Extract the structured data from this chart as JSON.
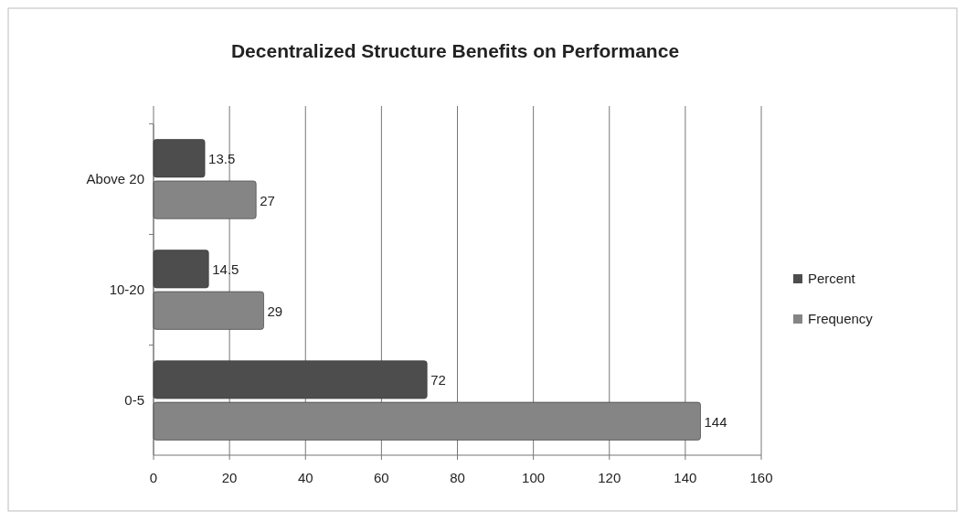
{
  "chart_data": {
    "type": "bar",
    "orientation": "horizontal",
    "title": "Decentralized Structure Benefits on Performance",
    "categories": [
      "Above 20",
      "10-20",
      "0-5"
    ],
    "series": [
      {
        "name": "Percent",
        "color": "#4d4d4d",
        "values": [
          13.5,
          14.5,
          72
        ]
      },
      {
        "name": "Frequency",
        "color": "#858585",
        "values": [
          27,
          29,
          144
        ]
      }
    ],
    "xlim": [
      0,
      160
    ],
    "xticks": [
      0,
      20,
      40,
      60,
      80,
      100,
      120,
      140,
      160
    ],
    "grid": "x",
    "legend": "right",
    "data_labels": true
  }
}
